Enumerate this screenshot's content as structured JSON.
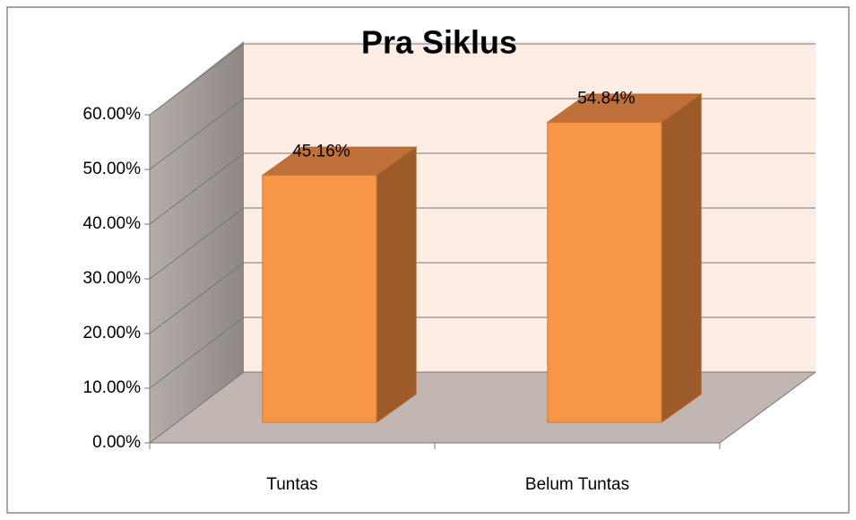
{
  "chart_data": {
    "type": "bar",
    "title": "Pra Siklus",
    "categories": [
      "Tuntas",
      "Belum Tuntas"
    ],
    "values": [
      45.16,
      54.84
    ],
    "value_labels": [
      "45.16%",
      "54.84%"
    ],
    "color": "#f79646",
    "ylim": [
      0,
      60
    ],
    "yticks": [
      {
        "value": 0,
        "label": "0.00%"
      },
      {
        "value": 10,
        "label": "10.00%"
      },
      {
        "value": 20,
        "label": "20.00%"
      },
      {
        "value": 30,
        "label": "30.00%"
      },
      {
        "value": 40,
        "label": "40.00%"
      },
      {
        "value": 50,
        "label": "50.00%"
      },
      {
        "value": 60,
        "label": "60.00%"
      }
    ],
    "grid": true
  }
}
